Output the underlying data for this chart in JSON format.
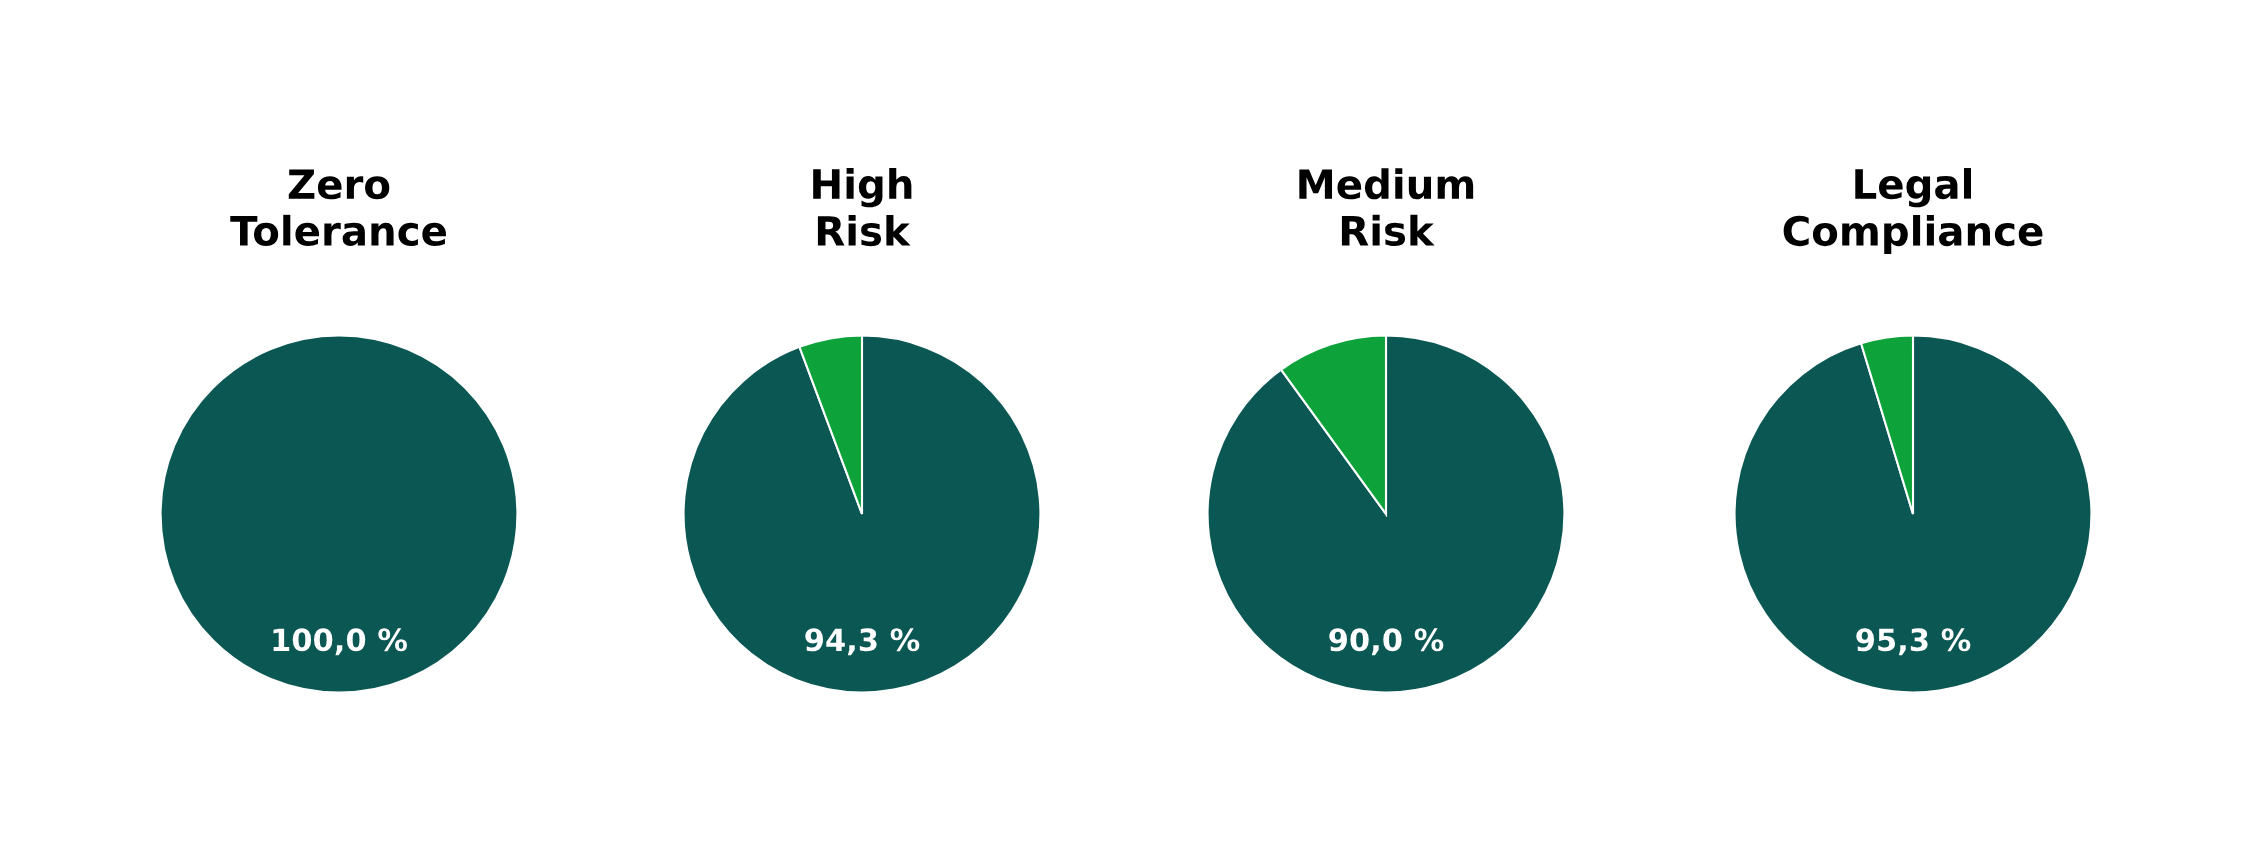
{
  "chart_data": [
    {
      "type": "pie",
      "title": "Zero\nTolerance",
      "categories": [
        null
      ],
      "values": [
        100.0
      ],
      "colors": [
        "#0a5753"
      ],
      "value_labels": [
        "100,0 %"
      ]
    },
    {
      "type": "pie",
      "title": "High\nRisk",
      "categories": [
        null,
        null
      ],
      "values": [
        94.3,
        5.7
      ],
      "colors": [
        "#0a5753",
        "#0ea33a"
      ],
      "value_labels": [
        "94,3 %",
        null
      ]
    },
    {
      "type": "pie",
      "title": "Medium\nRisk",
      "categories": [
        null,
        null
      ],
      "values": [
        90.0,
        10.0
      ],
      "colors": [
        "#0a5753",
        "#0ea33a"
      ],
      "value_labels": [
        "90,0 %",
        null
      ]
    },
    {
      "type": "pie",
      "title": "Legal\nCompliance",
      "categories": [
        null,
        null
      ],
      "values": [
        95.3,
        4.7
      ],
      "colors": [
        "#0a5753",
        "#0ea33a"
      ],
      "value_labels": [
        "95,3 %",
        null
      ]
    }
  ]
}
